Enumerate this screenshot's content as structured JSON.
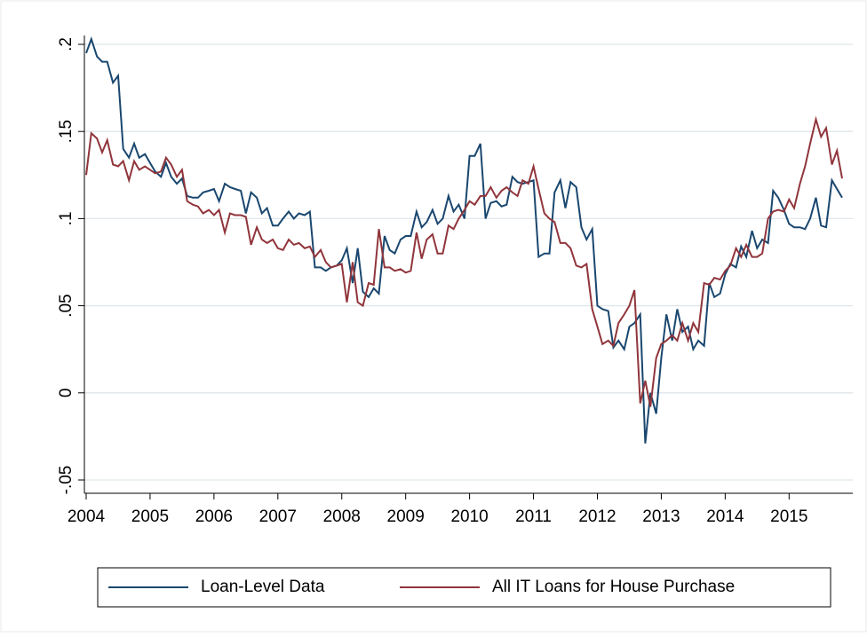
{
  "chart_data": {
    "type": "line",
    "x": [
      2004,
      2004.08,
      2004.17,
      2004.25,
      2004.33,
      2004.42,
      2004.5,
      2004.58,
      2004.67,
      2004.75,
      2004.83,
      2004.92,
      2005,
      2005.08,
      2005.17,
      2005.25,
      2005.33,
      2005.42,
      2005.5,
      2005.58,
      2005.67,
      2005.75,
      2005.83,
      2005.92,
      2006,
      2006.08,
      2006.17,
      2006.25,
      2006.33,
      2006.42,
      2006.5,
      2006.58,
      2006.67,
      2006.75,
      2006.83,
      2006.92,
      2007,
      2007.08,
      2007.17,
      2007.25,
      2007.33,
      2007.42,
      2007.5,
      2007.58,
      2007.67,
      2007.75,
      2007.83,
      2007.92,
      2008,
      2008.08,
      2008.17,
      2008.25,
      2008.33,
      2008.42,
      2008.5,
      2008.58,
      2008.67,
      2008.75,
      2008.83,
      2008.92,
      2009,
      2009.08,
      2009.17,
      2009.25,
      2009.33,
      2009.42,
      2009.5,
      2009.58,
      2009.67,
      2009.75,
      2009.83,
      2009.92,
      2010,
      2010.08,
      2010.17,
      2010.25,
      2010.33,
      2010.42,
      2010.5,
      2010.58,
      2010.67,
      2010.75,
      2010.83,
      2010.92,
      2011,
      2011.08,
      2011.17,
      2011.25,
      2011.33,
      2011.42,
      2011.5,
      2011.58,
      2011.67,
      2011.75,
      2011.83,
      2011.92,
      2012,
      2012.08,
      2012.17,
      2012.25,
      2012.33,
      2012.42,
      2012.5,
      2012.58,
      2012.67,
      2012.75,
      2012.83,
      2012.92,
      2013,
      2013.08,
      2013.17,
      2013.25,
      2013.33,
      2013.42,
      2013.5,
      2013.58,
      2013.67,
      2013.75,
      2013.83,
      2013.92,
      2014,
      2014.08,
      2014.17,
      2014.25,
      2014.33,
      2014.42,
      2014.5,
      2014.58,
      2014.67,
      2014.75,
      2014.83,
      2014.92,
      2015,
      2015.08,
      2015.17,
      2015.25,
      2015.33,
      2015.42,
      2015.5,
      2015.58,
      2015.67,
      2015.75,
      2015.83
    ],
    "series": [
      {
        "name": "Loan-Level Data",
        "color": "#1a476f",
        "values": [
          0.195,
          0.203,
          0.193,
          0.19,
          0.19,
          0.178,
          0.182,
          0.14,
          0.135,
          0.143,
          0.135,
          0.137,
          0.132,
          0.127,
          0.124,
          0.132,
          0.124,
          0.12,
          0.123,
          0.113,
          0.112,
          0.112,
          0.115,
          0.116,
          0.117,
          0.11,
          0.12,
          0.118,
          0.117,
          0.116,
          0.103,
          0.115,
          0.112,
          0.103,
          0.106,
          0.096,
          0.096,
          0.1,
          0.104,
          0.1,
          0.103,
          0.102,
          0.104,
          0.072,
          0.072,
          0.07,
          0.072,
          0.073,
          0.076,
          0.083,
          0.063,
          0.083,
          0.058,
          0.055,
          0.06,
          0.057,
          0.09,
          0.082,
          0.08,
          0.088,
          0.09,
          0.09,
          0.104,
          0.095,
          0.098,
          0.105,
          0.097,
          0.1,
          0.113,
          0.104,
          0.108,
          0.1,
          0.136,
          0.136,
          0.143,
          0.1,
          0.109,
          0.11,
          0.107,
          0.108,
          0.124,
          0.121,
          0.12,
          0.121,
          0.122,
          0.078,
          0.08,
          0.08,
          0.115,
          0.122,
          0.106,
          0.121,
          0.118,
          0.095,
          0.088,
          0.094,
          0.05,
          0.048,
          0.047,
          0.026,
          0.03,
          0.025,
          0.038,
          0.04,
          0.045,
          -0.029,
          0.0,
          -0.012,
          0.02,
          0.045,
          0.03,
          0.048,
          0.035,
          0.038,
          0.025,
          0.03,
          0.027,
          0.063,
          0.055,
          0.057,
          0.068,
          0.074,
          0.072,
          0.084,
          0.078,
          0.093,
          0.083,
          0.088,
          0.086,
          0.116,
          0.112,
          0.105,
          0.097,
          0.095,
          0.095,
          0.094,
          0.1,
          0.112,
          0.096,
          0.095,
          0.122,
          0.117,
          0.112
        ]
      },
      {
        "name": "All IT Loans for House Purchase",
        "color": "#90353b",
        "values": [
          0.125,
          0.149,
          0.146,
          0.138,
          0.145,
          0.131,
          0.13,
          0.133,
          0.122,
          0.133,
          0.128,
          0.13,
          0.128,
          0.126,
          0.127,
          0.135,
          0.131,
          0.124,
          0.128,
          0.11,
          0.108,
          0.107,
          0.103,
          0.105,
          0.102,
          0.105,
          0.092,
          0.103,
          0.102,
          0.102,
          0.101,
          0.085,
          0.095,
          0.088,
          0.086,
          0.088,
          0.083,
          0.082,
          0.088,
          0.085,
          0.086,
          0.083,
          0.084,
          0.078,
          0.082,
          0.075,
          0.072,
          0.073,
          0.074,
          0.052,
          0.075,
          0.052,
          0.05,
          0.063,
          0.062,
          0.094,
          0.072,
          0.072,
          0.07,
          0.071,
          0.069,
          0.07,
          0.092,
          0.077,
          0.088,
          0.091,
          0.08,
          0.08,
          0.096,
          0.094,
          0.1,
          0.105,
          0.11,
          0.108,
          0.113,
          0.113,
          0.118,
          0.112,
          0.116,
          0.118,
          0.115,
          0.113,
          0.122,
          0.12,
          0.13,
          0.117,
          0.103,
          0.1,
          0.098,
          0.086,
          0.086,
          0.083,
          0.073,
          0.072,
          0.074,
          0.048,
          0.038,
          0.028,
          0.03,
          0.027,
          0.04,
          0.045,
          0.05,
          0.059,
          -0.006,
          0.007,
          -0.008,
          0.02,
          0.028,
          0.03,
          0.033,
          0.03,
          0.04,
          0.03,
          0.04,
          0.035,
          0.063,
          0.062,
          0.066,
          0.065,
          0.07,
          0.073,
          0.083,
          0.078,
          0.085,
          0.078,
          0.078,
          0.08,
          0.1,
          0.104,
          0.105,
          0.104,
          0.111,
          0.106,
          0.12,
          0.13,
          0.143,
          0.157,
          0.147,
          0.152,
          0.131,
          0.139,
          0.123
        ]
      }
    ],
    "xlim": [
      2004,
      2015.83
    ],
    "xticks": [
      2004,
      2005,
      2006,
      2007,
      2008,
      2009,
      2010,
      2011,
      2012,
      2013,
      2014,
      2015
    ],
    "ylim": [
      -0.05,
      0.2
    ],
    "yticks": [
      {
        "value": -0.05,
        "label": "-.05"
      },
      0,
      {
        "value": 0.05,
        "label": ".05"
      },
      {
        "value": 0.1,
        "label": ".1"
      },
      {
        "value": 0.15,
        "label": ".15"
      },
      {
        "value": 0.2,
        "label": ".2"
      }
    ],
    "grid": true,
    "legend": "bottom"
  }
}
